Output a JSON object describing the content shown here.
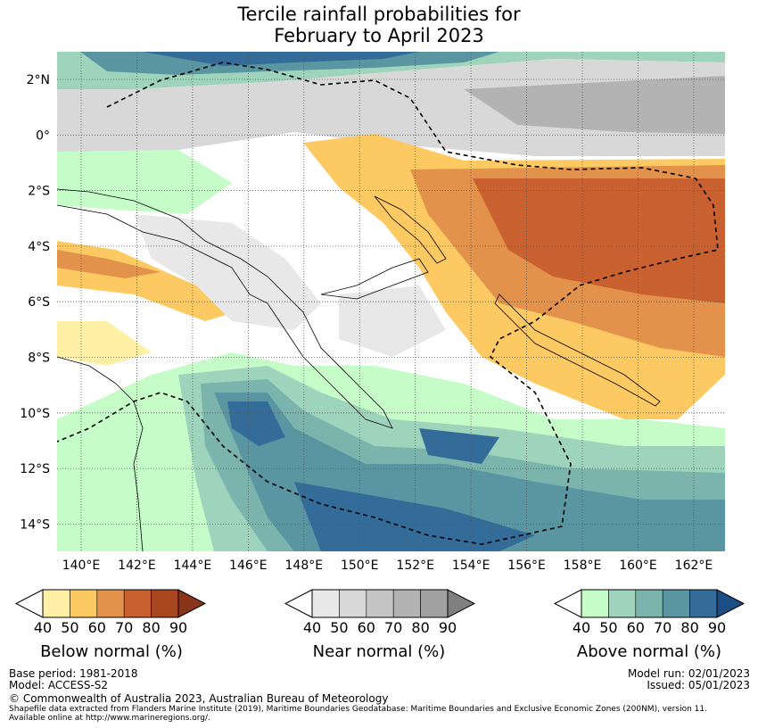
{
  "title_line1": "Tercile rainfall probabilities for",
  "title_line2": "February to April 2023",
  "map": {
    "lon_labels": [
      "140°E",
      "142°E",
      "144°E",
      "146°E",
      "148°E",
      "150°E",
      "152°E",
      "154°E",
      "156°E",
      "158°E",
      "160°E",
      "162°E"
    ],
    "lat_labels": [
      "2°N",
      "0°",
      "2°S",
      "4°S",
      "6°S",
      "8°S",
      "10°S",
      "12°S",
      "14°S"
    ]
  },
  "colorbars": [
    {
      "title": "Below normal (%)",
      "ticks": [
        "40",
        "50",
        "60",
        "70",
        "80",
        "90"
      ],
      "colors": [
        "#fff0a6",
        "#fdc963",
        "#e2924a",
        "#c96030",
        "#a8461f"
      ],
      "over": "#8a3519"
    },
    {
      "title": "Near normal (%)",
      "ticks": [
        "40",
        "50",
        "60",
        "70",
        "80",
        "90"
      ],
      "colors": [
        "#e8e8e8",
        "#d8d8d8",
        "#c5c5c5",
        "#b3b3b3",
        "#a1a1a1"
      ],
      "over": "#808080"
    },
    {
      "title": "Above normal (%)",
      "ticks": [
        "40",
        "50",
        "60",
        "70",
        "80",
        "90"
      ],
      "colors": [
        "#c6fcc8",
        "#9ed4bb",
        "#7ab4ac",
        "#5a96a1",
        "#336b99"
      ],
      "over": "#1d4d85"
    }
  ],
  "footer": {
    "base_period": "Base period: 1981-2018",
    "model": "Model: ACCESS-S2",
    "model_run": "Model run: 02/01/2023",
    "issued": "Issued: 05/01/2023",
    "copyright": "© Commonwealth of Australia 2023, Australian Bureau of Meteorology",
    "shapefile_line1": "Shapefile data extracted from Flanders Marine Institute (2019), Maritime Boundaries Geodatabase: Maritime Boundaries and Exclusive Economic Zones (200NM), version 11.",
    "shapefile_line2": "Available online at http://www.marineregions.org/."
  }
}
